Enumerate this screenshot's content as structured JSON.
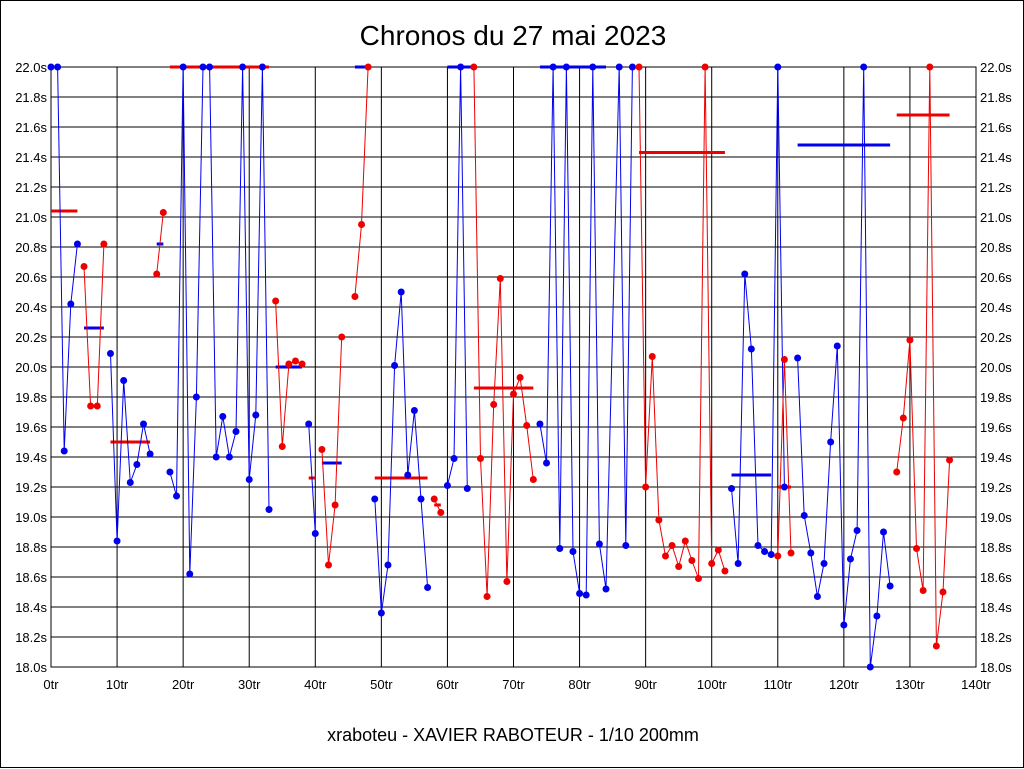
{
  "chart_data": {
    "type": "line",
    "title": "Chronos du 27 mai 2023",
    "footer": "xraboteu - XAVIER RABOTEUR - 1/10 200mm",
    "xlim": [
      0,
      140
    ],
    "ylim": [
      18.0,
      22.0
    ],
    "x_ticks": [
      0,
      10,
      20,
      30,
      40,
      50,
      60,
      70,
      80,
      90,
      100,
      110,
      120,
      130,
      140
    ],
    "x_tick_labels": [
      "0tr",
      "10tr",
      "20tr",
      "30tr",
      "40tr",
      "50tr",
      "60tr",
      "70tr",
      "80tr",
      "90tr",
      "100tr",
      "110tr",
      "120tr",
      "130tr",
      "140tr"
    ],
    "y_ticks": [
      18.0,
      18.2,
      18.4,
      18.6,
      18.8,
      19.0,
      19.2,
      19.4,
      19.6,
      19.8,
      20.0,
      20.2,
      20.4,
      20.6,
      20.8,
      21.0,
      21.2,
      21.4,
      21.6,
      21.8,
      22.0
    ],
    "y_tick_labels": [
      "18.0s",
      "18.2s",
      "18.4s",
      "18.6s",
      "18.8s",
      "19.0s",
      "19.2s",
      "19.4s",
      "19.6s",
      "19.8s",
      "20.0s",
      "20.2s",
      "20.4s",
      "20.6s",
      "20.8s",
      "21.0s",
      "21.2s",
      "21.4s",
      "21.6s",
      "21.8s",
      "22.0s"
    ],
    "grid": true,
    "y_axis_both_sides": true,
    "colors": {
      "blue": "#0000ee",
      "red": "#ee0000",
      "grid": "#000000"
    },
    "segments": [
      {
        "color": "blue",
        "points": [
          [
            0,
            22.0
          ],
          [
            1,
            22.0
          ],
          [
            2,
            19.44
          ],
          [
            3,
            20.42
          ],
          [
            4,
            20.82
          ]
        ],
        "mean": 20.26,
        "mean_range": [
          5,
          8
        ]
      },
      {
        "color": "red",
        "points": [
          [
            5,
            20.67
          ],
          [
            6,
            19.74
          ],
          [
            7,
            19.74
          ],
          [
            8,
            20.82
          ]
        ],
        "mean": 21.04,
        "mean_range": [
          0,
          4
        ]
      },
      {
        "color": "blue",
        "points": [
          [
            9,
            20.09
          ],
          [
            10,
            18.84
          ],
          [
            11,
            19.91
          ],
          [
            12,
            19.23
          ],
          [
            13,
            19.35
          ],
          [
            14,
            19.62
          ],
          [
            15,
            19.42
          ]
        ],
        "mean": 20.82,
        "mean_range": [
          16,
          17
        ]
      },
      {
        "color": "red",
        "points": [
          [
            16,
            20.62
          ],
          [
            17,
            21.03
          ]
        ],
        "mean": 19.5,
        "mean_range": [
          9,
          15
        ]
      },
      {
        "color": "blue",
        "points": [
          [
            18,
            19.3
          ],
          [
            19,
            19.14
          ],
          [
            20,
            22.0
          ],
          [
            21,
            18.62
          ],
          [
            22,
            19.8
          ],
          [
            23,
            22.0
          ],
          [
            24,
            22.0
          ],
          [
            25,
            19.4
          ],
          [
            26,
            19.67
          ],
          [
            27,
            19.4
          ],
          [
            28,
            19.57
          ],
          [
            29,
            22.0
          ],
          [
            30,
            19.25
          ],
          [
            31,
            19.68
          ],
          [
            32,
            22.0
          ],
          [
            33,
            19.05
          ]
        ],
        "mean": 20.0,
        "mean_range": [
          34,
          38
        ]
      },
      {
        "color": "red",
        "points": [
          [
            34,
            20.44
          ],
          [
            35,
            19.47
          ],
          [
            36,
            20.02
          ],
          [
            37,
            20.04
          ],
          [
            38,
            20.02
          ]
        ],
        "mean": 22.0,
        "mean_range": [
          18,
          33
        ]
      },
      {
        "color": "blue",
        "points": [
          [
            39,
            19.62
          ],
          [
            40,
            18.89
          ]
        ],
        "mean": 19.36,
        "mean_range": [
          41,
          44
        ]
      },
      {
        "color": "red",
        "points": [
          [
            41,
            19.45
          ],
          [
            42,
            18.68
          ],
          [
            43,
            19.08
          ],
          [
            44,
            20.2
          ]
        ],
        "mean": 19.26,
        "mean_range": [
          39,
          40
        ]
      },
      {
        "color": "blue",
        "points": [
          [
            49,
            19.12
          ],
          [
            50,
            18.36
          ],
          [
            51,
            18.68
          ],
          [
            52,
            20.01
          ],
          [
            53,
            20.5
          ],
          [
            54,
            19.28
          ],
          [
            55,
            19.71
          ],
          [
            56,
            19.12
          ],
          [
            57,
            18.53
          ]
        ],
        "mean": 22.0,
        "mean_range": [
          46,
          48
        ]
      },
      {
        "color": "red",
        "points": [
          [
            46,
            20.47
          ],
          [
            47,
            20.95
          ],
          [
            48,
            22.0
          ]
        ],
        "mean": 19.26,
        "mean_range": [
          49,
          57
        ]
      },
      {
        "color": "red",
        "points": [
          [
            58,
            19.12
          ],
          [
            59,
            19.03
          ]
        ],
        "mean": 19.08,
        "mean_range": [
          58,
          59
        ]
      },
      {
        "color": "blue",
        "points": [
          [
            60,
            19.21
          ],
          [
            61,
            19.39
          ],
          [
            62,
            22.0
          ],
          [
            63,
            19.19
          ]
        ],
        "mean": 22.0,
        "mean_range": [
          60,
          64
        ]
      },
      {
        "color": "red",
        "points": [
          [
            64,
            22.0
          ],
          [
            65,
            19.39
          ],
          [
            66,
            18.47
          ],
          [
            67,
            19.75
          ],
          [
            68,
            20.59
          ],
          [
            69,
            18.57
          ],
          [
            70,
            19.82
          ],
          [
            71,
            19.93
          ],
          [
            72,
            19.61
          ],
          [
            73,
            19.25
          ]
        ],
        "mean": 19.86,
        "mean_range": [
          64,
          73
        ]
      },
      {
        "color": "blue",
        "points": [
          [
            74,
            19.62
          ],
          [
            75,
            19.36
          ],
          [
            76,
            22.0
          ],
          [
            77,
            18.79
          ],
          [
            78,
            22.0
          ],
          [
            79,
            18.77
          ],
          [
            80,
            18.49
          ],
          [
            81,
            18.48
          ],
          [
            82,
            22.0
          ],
          [
            83,
            18.82
          ],
          [
            84,
            18.52
          ],
          [
            86,
            22.0
          ],
          [
            87,
            18.81
          ],
          [
            88,
            22.0
          ]
        ],
        "mean": 22.0,
        "mean_range": [
          74,
          84
        ]
      },
      {
        "color": "red",
        "points": [
          [
            89,
            22.0
          ],
          [
            90,
            19.2
          ],
          [
            91,
            20.07
          ],
          [
            92,
            18.98
          ],
          [
            93,
            18.74
          ],
          [
            94,
            18.81
          ],
          [
            95,
            18.67
          ],
          [
            96,
            18.84
          ],
          [
            97,
            18.71
          ],
          [
            98,
            18.59
          ],
          [
            99,
            22.0
          ],
          [
            100,
            18.69
          ],
          [
            101,
            18.78
          ],
          [
            102,
            18.64
          ]
        ],
        "mean": 21.43,
        "mean_range": [
          89,
          102
        ]
      },
      {
        "color": "blue",
        "points": [
          [
            103,
            19.19
          ],
          [
            104,
            18.69
          ],
          [
            105,
            20.62
          ],
          [
            106,
            20.12
          ],
          [
            107,
            18.81
          ],
          [
            108,
            18.77
          ],
          [
            109,
            18.75
          ],
          [
            110,
            22.0
          ],
          [
            111,
            19.2
          ]
        ],
        "mean": 19.28,
        "mean_range": [
          103,
          109
        ]
      },
      {
        "color": "red",
        "points": [
          [
            110,
            18.74
          ],
          [
            111,
            20.05
          ],
          [
            112,
            18.76
          ]
        ],
        "mean": 19.2,
        "mean_range": [
          110,
          112
        ]
      },
      {
        "color": "blue",
        "points": [
          [
            113,
            20.06
          ],
          [
            114,
            19.01
          ],
          [
            115,
            18.76
          ],
          [
            116,
            18.47
          ],
          [
            117,
            18.69
          ],
          [
            118,
            19.5
          ],
          [
            119,
            20.14
          ],
          [
            120,
            18.28
          ],
          [
            121,
            18.72
          ],
          [
            122,
            18.91
          ],
          [
            123,
            22.0
          ],
          [
            124,
            18.0
          ],
          [
            125,
            18.34
          ],
          [
            126,
            18.9
          ],
          [
            127,
            18.54
          ]
        ],
        "mean": 21.48,
        "mean_range": [
          113,
          127
        ]
      },
      {
        "color": "red",
        "points": [
          [
            128,
            19.3
          ],
          [
            129,
            19.66
          ],
          [
            130,
            20.18
          ],
          [
            131,
            18.79
          ],
          [
            132,
            18.51
          ],
          [
            133,
            22.0
          ],
          [
            134,
            18.14
          ],
          [
            135,
            18.5
          ],
          [
            136,
            19.38
          ]
        ],
        "mean": 21.68,
        "mean_range": [
          128,
          136
        ]
      }
    ]
  }
}
